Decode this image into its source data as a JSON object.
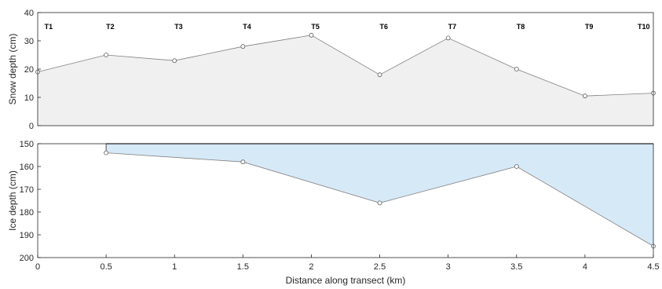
{
  "chart_data": [
    {
      "type": "area",
      "ylabel": "Snow depth (cm)",
      "xlim": [
        0,
        4.5
      ],
      "ylim": [
        0,
        40
      ],
      "yticks": [
        0,
        10,
        20,
        30,
        40
      ],
      "grid": false,
      "fill_color": "#f0f0f0",
      "line_color": "#808080",
      "series": [
        {
          "x": [
            0,
            0.5,
            1,
            1.5,
            2,
            2.5,
            3,
            3.5,
            4,
            4.5
          ],
          "values": [
            19,
            25,
            23,
            28,
            32,
            18,
            31,
            20,
            10.5,
            11.5
          ]
        }
      ],
      "annotations": [
        {
          "x": 0.08,
          "text": "T1"
        },
        {
          "x": 0.53,
          "text": "T2"
        },
        {
          "x": 1.03,
          "text": "T3"
        },
        {
          "x": 1.53,
          "text": "T4"
        },
        {
          "x": 2.03,
          "text": "T5"
        },
        {
          "x": 2.53,
          "text": "T6"
        },
        {
          "x": 3.03,
          "text": "T7"
        },
        {
          "x": 3.53,
          "text": "T8"
        },
        {
          "x": 4.03,
          "text": "T9"
        },
        {
          "x": 4.43,
          "text": "T10"
        }
      ]
    },
    {
      "type": "area",
      "ylabel": "Ice depth (cm)",
      "xlabel": "Distance along transect (km)",
      "xlim": [
        0,
        4.5
      ],
      "ylim": [
        150,
        200
      ],
      "y_reversed": true,
      "yticks": [
        150,
        160,
        170,
        180,
        190,
        200
      ],
      "xticks": [
        0,
        0.5,
        1,
        1.5,
        2,
        2.5,
        3,
        3.5,
        4,
        4.5
      ],
      "xtick_labels": [
        "0",
        "0.5",
        "1",
        "1.5",
        "2",
        "2.5",
        "3",
        "3.5",
        "4",
        "4.5"
      ],
      "grid": false,
      "fill_color": "#d6e9f7",
      "line_color": "#808080",
      "series": [
        {
          "x": [
            0.5,
            1.5,
            2.5,
            3.5,
            4.5
          ],
          "values": [
            154,
            158,
            176,
            160,
            195
          ]
        }
      ]
    }
  ]
}
